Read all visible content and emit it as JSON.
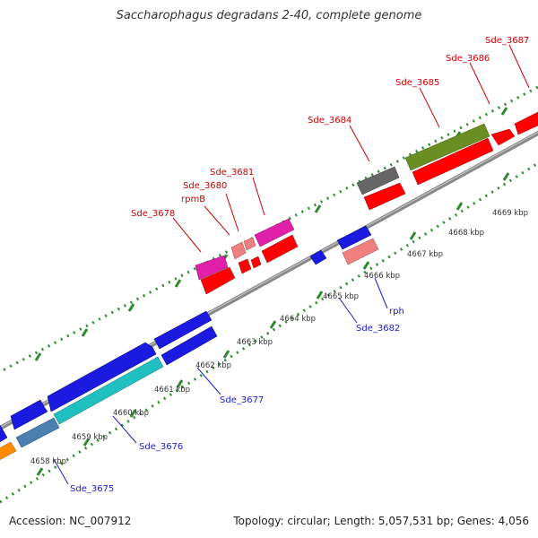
{
  "title": "Saccharophagus degradans 2-40, complete genome",
  "footer": {
    "accession": "Accession: NC_007912",
    "summary": "Topology: circular; Length: 5,057,531 bp; Genes: 4,056"
  },
  "colors": {
    "backbone": "#888888",
    "tick": "#2d8a2d",
    "label_top": "#cc0000",
    "label_bottom": "#1a1acc",
    "kbp_text": "#333333"
  },
  "kbp_labels": [
    "4658 kbp",
    "4659 kbp",
    "4660 kbp",
    "4661 kbp",
    "4662 kbp",
    "4663 kbp",
    "4664 kbp",
    "4665 kbp",
    "4666 kbp",
    "4667 kbp",
    "4668 kbp",
    "4669 kbp"
  ],
  "gene_labels": {
    "top": [
      "Sde_3678",
      "rpmB",
      "Sde_3680",
      "Sde_3681",
      "Sde_3684",
      "Sde_3685",
      "Sde_3686",
      "Sde_3687"
    ],
    "bottom": [
      "Sde_3675",
      "Sde_3676",
      "Sde_3677",
      "Sde_3682",
      "rph"
    ]
  }
}
